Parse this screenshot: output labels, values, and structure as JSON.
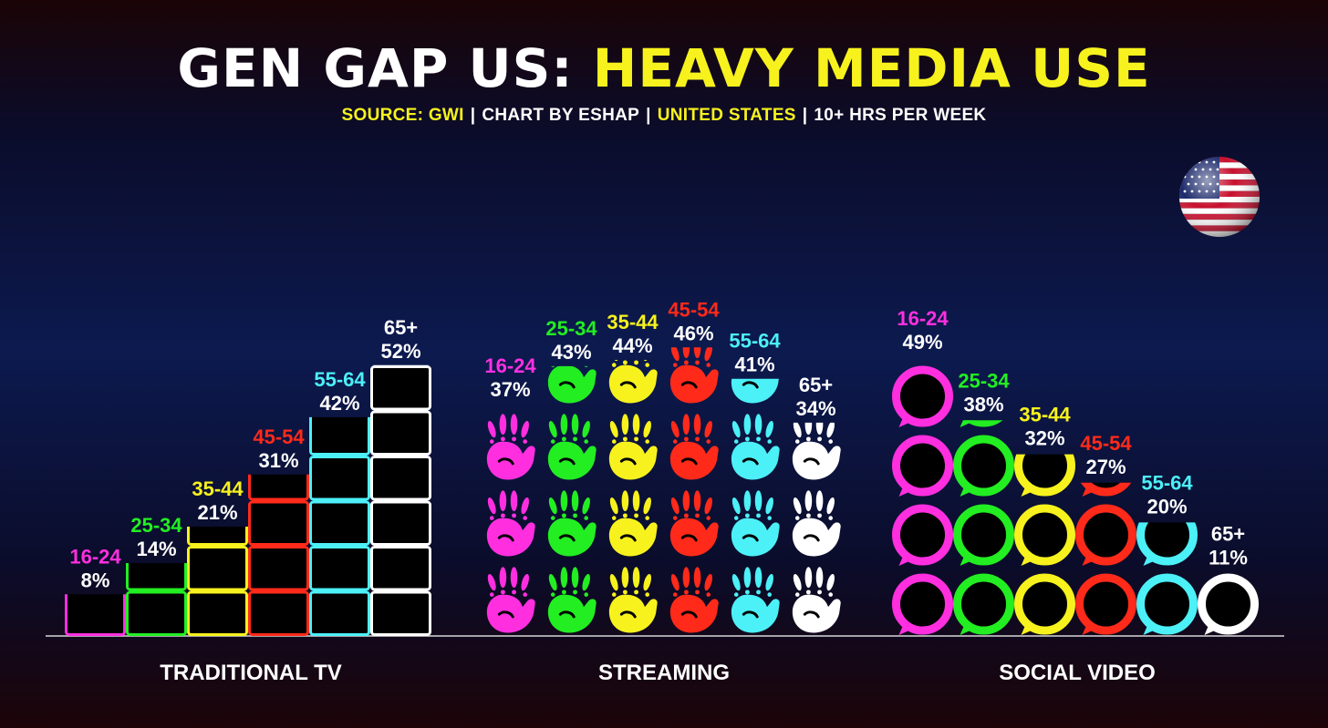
{
  "title": {
    "part1": "GEN GAP US:",
    "part2": "HEAVY MEDIA USE"
  },
  "subtitle": {
    "source": "SOURCE: GWI",
    "chart_by": "CHART BY ESHAP",
    "region": "UNITED STATES",
    "metric": "10+ HRS PER WEEK",
    "separator": "|"
  },
  "colors": {
    "16-24": "#ff2fe0",
    "25-34": "#22ee22",
    "35-44": "#f7f21d",
    "45-54": "#ff2a1a",
    "55-64": "#4cf0f7",
    "65+": "#ffffff",
    "title_accent": "#f7f21d"
  },
  "icons": {
    "TRADITIONAL TV": "tv-screen-icon",
    "STREAMING": "handprint-icon",
    "SOCIAL VIDEO": "speech-bubble-icon",
    "flag": "us-flag-sphere-icon"
  },
  "chart_data": {
    "type": "bar",
    "categories": [
      "TRADITIONAL TV",
      "STREAMING",
      "SOCIAL VIDEO"
    ],
    "series": [
      {
        "name": "16-24",
        "values": [
          8,
          37,
          49
        ]
      },
      {
        "name": "25-34",
        "values": [
          14,
          43,
          38
        ]
      },
      {
        "name": "35-44",
        "values": [
          21,
          44,
          32
        ]
      },
      {
        "name": "45-54",
        "values": [
          31,
          46,
          27
        ]
      },
      {
        "name": "55-64",
        "values": [
          42,
          41,
          20
        ]
      },
      {
        "name": "65+",
        "values": [
          52,
          34,
          11
        ]
      }
    ],
    "unit": "%",
    "ylim": [
      0,
      52
    ],
    "grid": false,
    "legend": "none"
  }
}
